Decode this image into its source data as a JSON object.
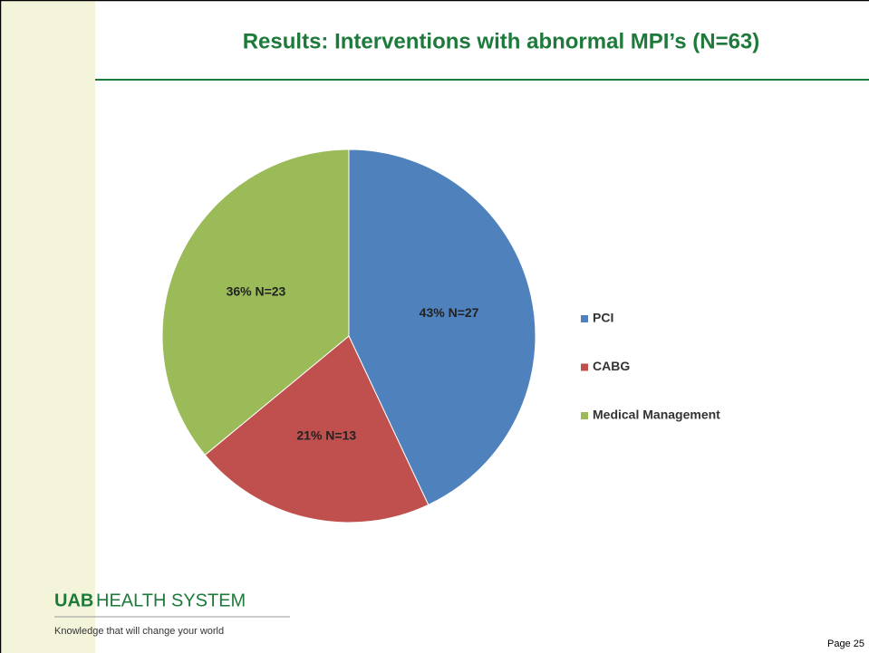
{
  "chart_data": {
    "type": "pie",
    "title": "Results: Interventions with abnormal MPI’s (N=63)",
    "categories": [
      "PCI",
      "CABG",
      "Medical Management"
    ],
    "values": [
      43,
      21,
      36
    ],
    "value_labels": [
      "43% N=27",
      "21% N=13",
      "36% N=23"
    ],
    "colors": [
      "#4f81bd",
      "#c0504d",
      "#9bbb59"
    ],
    "legend": "right"
  },
  "footer": {
    "logo": "UAB",
    "name": "HEALTH SYSTEM",
    "tagline": "Knowledge that will change your world",
    "page": "Page 25"
  }
}
